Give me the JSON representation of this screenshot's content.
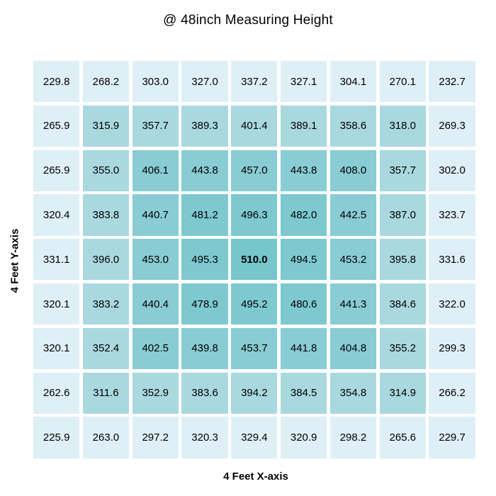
{
  "title": "@ 48inch Measuring Height",
  "xlabel": "4 Feet X-axis",
  "ylabel": "4 Feet Y-axis",
  "chart_data": {
    "type": "heatmap",
    "title": "@ 48inch Measuring Height",
    "xlabel": "4 Feet X-axis",
    "ylabel": "4 Feet Y-axis",
    "rows": 9,
    "cols": 9,
    "values": [
      [
        229.8,
        268.2,
        303.0,
        327.0,
        337.2,
        327.1,
        304.1,
        270.1,
        232.7
      ],
      [
        265.9,
        315.9,
        357.7,
        389.3,
        401.4,
        389.1,
        358.6,
        318.0,
        269.3
      ],
      [
        265.9,
        355.0,
        406.1,
        443.8,
        457.0,
        443.8,
        408.0,
        357.7,
        302.0
      ],
      [
        320.4,
        383.8,
        440.7,
        481.2,
        496.3,
        482.0,
        442.5,
        387.0,
        323.7
      ],
      [
        331.1,
        396.0,
        453.0,
        495.3,
        510.0,
        494.5,
        453.2,
        395.8,
        331.6
      ],
      [
        320.1,
        383.2,
        440.4,
        478.9,
        495.2,
        480.6,
        441.3,
        384.6,
        322.0
      ],
      [
        320.1,
        352.4,
        402.5,
        439.8,
        453.7,
        441.8,
        404.8,
        355.2,
        299.3
      ],
      [
        262.6,
        311.6,
        352.9,
        383.6,
        394.2,
        384.5,
        354.8,
        314.9,
        266.2
      ],
      [
        225.9,
        263.0,
        297.2,
        320.3,
        329.4,
        320.9,
        298.2,
        265.6,
        229.7
      ]
    ],
    "value_decimals": 1,
    "max_value": 510.0,
    "max_value_bold": true,
    "color_pattern": "chebyshev-ring-from-center",
    "ring_colors_center_to_edge": [
      "#76c6cc",
      "#7dc9cf",
      "#89ccd3",
      "#aad8df",
      "#dfeff6"
    ],
    "text_color": "#000000",
    "background": "#ffffff",
    "grid_gaps": true,
    "legend": "none"
  }
}
